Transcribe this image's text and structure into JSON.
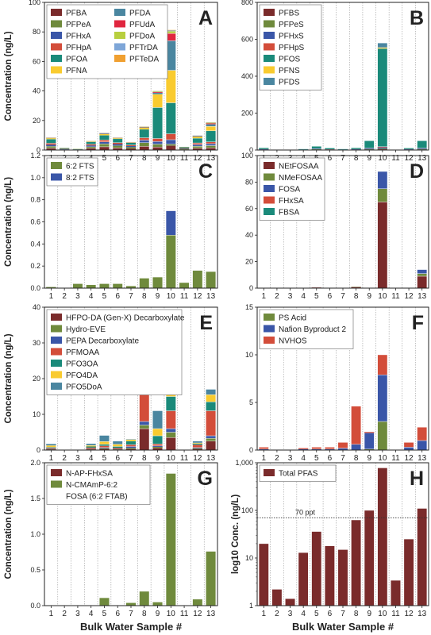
{
  "colors": {
    "PFBA": "#7a2b2b",
    "PFPeA": "#6f8a3c",
    "PFHxA": "#3a56a8",
    "PFHpA": "#d34d3a",
    "PFOA": "#1a8a7a",
    "PFNA": "#f9cb2f",
    "PFDA": "#4a86a0",
    "PFUdA": "#e0263f",
    "PFDoA": "#b8cf3f",
    "PFTrDA": "#7ea6d8",
    "PFTeDA": "#f0a031",
    "PFBS": "#7a2b2b",
    "PFPeS": "#6f8a3c",
    "PFHxS": "#3a56a8",
    "PFHpS": "#d34d3a",
    "PFOS": "#1a8a7a",
    "PFNS": "#f9cb2f",
    "PFDS": "#4a86a0",
    "6:2 FTS": "#6f8a3c",
    "8:2 FTS": "#3a56a8",
    "NEtFOSAA": "#7a2b2b",
    "NMeFOSAA": "#6f8a3c",
    "FOSA": "#3a56a8",
    "FHxSA": "#d34d3a",
    "FBSA": "#1a8a7a",
    "HFPO-DA (Gen-X) Decarboxylate": "#7a2b2b",
    "Hydro-EVE": "#6f8a3c",
    "PEPA Decarboxylate": "#3a56a8",
    "PFMOAA": "#d34d3a",
    "PFO3OA": "#1a8a7a",
    "PFO4DA": "#f9cb2f",
    "PFO5DoA": "#4a86a0",
    "PS Acid": "#6f8a3c",
    "Nafion Byproduct 2": "#3a56a8",
    "NVHOS": "#d34d3a",
    "N-AP-FHxSA": "#7a2b2b",
    "N-CMAmP-6:2 FOSA (6:2 FTAB)": "#6f8a3c",
    "Total PFAS": "#7a2b2b"
  },
  "chart_data": [
    {
      "panel": "A",
      "type": "bar",
      "stacked": true,
      "categories": [
        "1",
        "2",
        "3",
        "4",
        "5",
        "6",
        "7",
        "8",
        "9",
        "10",
        "11",
        "12",
        "13"
      ],
      "ylabel": "Concentration (ng/L)",
      "ylim": [
        0,
        100
      ],
      "yticks": [
        0,
        20,
        40,
        60,
        80,
        100
      ],
      "legend_placement": "top-left",
      "legend_columns": 2,
      "series": [
        {
          "name": "PFBA",
          "values": [
            1.3,
            0.2,
            0.1,
            1.2,
            2.2,
            1.4,
            1.0,
            2.5,
            2.0,
            3.0,
            0.4,
            1.3,
            1.5
          ]
        },
        {
          "name": "PFPeA",
          "values": [
            1.3,
            0.2,
            0.1,
            1.1,
            2.0,
            1.6,
            1.0,
            2.5,
            2.0,
            1.0,
            0.4,
            1.3,
            1.5
          ]
        },
        {
          "name": "PFHxA",
          "values": [
            1.0,
            0.2,
            0.1,
            0.8,
            1.3,
            1.0,
            0.7,
            1.7,
            1.8,
            3.0,
            0.3,
            1.1,
            1.3
          ]
        },
        {
          "name": "PFHpA",
          "values": [
            1.0,
            0.2,
            0.1,
            0.8,
            1.3,
            1.0,
            0.7,
            1.6,
            2.0,
            4.0,
            0.3,
            1.1,
            1.2
          ]
        },
        {
          "name": "PFOA",
          "values": [
            2.8,
            0.5,
            0.3,
            1.6,
            3.2,
            2.6,
            1.6,
            5.7,
            21.0,
            21.0,
            0.6,
            3.2,
            7.5
          ]
        },
        {
          "name": "PFNA",
          "values": [
            0.6,
            0.1,
            0.1,
            0.3,
            0.8,
            0.4,
            0.2,
            1.0,
            9.0,
            22.0,
            0.1,
            1.0,
            3.0
          ]
        },
        {
          "name": "PFDA",
          "values": [
            0.2,
            0.0,
            0.0,
            0.1,
            0.4,
            0.2,
            0.1,
            0.3,
            1.0,
            20.0,
            0.0,
            0.4,
            1.5
          ]
        },
        {
          "name": "PFUdA",
          "values": [
            0.1,
            0.0,
            0.0,
            0.1,
            0.2,
            0.1,
            0.1,
            0.2,
            0.5,
            5.0,
            0.0,
            0.2,
            0.6
          ]
        },
        {
          "name": "PFDoA",
          "values": [
            0.1,
            0.0,
            0.0,
            0.1,
            0.1,
            0.1,
            0.0,
            0.2,
            0.4,
            1.5,
            0.0,
            0.1,
            0.4
          ]
        },
        {
          "name": "PFTrDA",
          "values": [
            0.0,
            0.0,
            0.0,
            0.0,
            0.1,
            0.0,
            0.0,
            0.1,
            0.2,
            0.5,
            0.0,
            0.1,
            0.2
          ]
        },
        {
          "name": "PFTeDA",
          "values": [
            0.0,
            0.0,
            0.0,
            0.0,
            0.0,
            0.0,
            0.0,
            0.1,
            0.1,
            0.3,
            0.0,
            0.0,
            0.1
          ]
        }
      ]
    },
    {
      "panel": "B",
      "type": "bar",
      "stacked": true,
      "categories": [
        "1",
        "2",
        "3",
        "4",
        "5",
        "6",
        "7",
        "8",
        "9",
        "10",
        "11",
        "12",
        "13"
      ],
      "ylabel": "",
      "ylim": [
        0,
        800
      ],
      "yticks": [
        0,
        200,
        400,
        600,
        800
      ],
      "legend_placement": "top-left",
      "legend_columns": 1,
      "series": [
        {
          "name": "PFBS",
          "values": [
            1,
            0,
            0,
            1,
            2,
            1,
            1,
            1,
            2,
            4,
            0,
            1,
            2
          ]
        },
        {
          "name": "PFPeS",
          "values": [
            1,
            0,
            0,
            1,
            2,
            1,
            1,
            1,
            2,
            4,
            0,
            1,
            2
          ]
        },
        {
          "name": "PFHxS",
          "values": [
            2,
            0,
            0,
            1,
            3,
            1,
            1,
            2,
            4,
            6,
            0,
            2,
            4
          ]
        },
        {
          "name": "PFHpS",
          "values": [
            1,
            0,
            0,
            0,
            1,
            1,
            0,
            1,
            2,
            4,
            0,
            1,
            2
          ]
        },
        {
          "name": "PFOS",
          "values": [
            6,
            1,
            1,
            2,
            12,
            6,
            2,
            6,
            40,
            532,
            1,
            5,
            40
          ]
        },
        {
          "name": "PFNS",
          "values": [
            0,
            0,
            0,
            0,
            0,
            0,
            0,
            0,
            0,
            5,
            0,
            0,
            0
          ]
        },
        {
          "name": "PFDS",
          "values": [
            0,
            0,
            0,
            0,
            0,
            0,
            0,
            0,
            0,
            25,
            0,
            0,
            0
          ]
        }
      ]
    },
    {
      "panel": "C",
      "type": "bar",
      "stacked": true,
      "categories": [
        "1",
        "2",
        "3",
        "4",
        "5",
        "6",
        "7",
        "8",
        "9",
        "10",
        "11",
        "12",
        "13"
      ],
      "ylabel": "Concentration (ng/L)",
      "ylim": [
        0,
        1.2
      ],
      "yticks": [
        0.0,
        0.2,
        0.4,
        0.6,
        0.8,
        1.0,
        1.2
      ],
      "legend_placement": "top-left",
      "legend_columns": 1,
      "series": [
        {
          "name": "6:2 FTS",
          "values": [
            0.01,
            0.0,
            0.04,
            0.03,
            0.04,
            0.04,
            0.02,
            0.09,
            0.1,
            0.48,
            0.05,
            0.16,
            0.15
          ]
        },
        {
          "name": "8:2 FTS",
          "values": [
            0.0,
            0.0,
            0.0,
            0.0,
            0.0,
            0.0,
            0.0,
            0.0,
            0.0,
            0.22,
            0.0,
            0.0,
            0.0
          ]
        }
      ]
    },
    {
      "panel": "D",
      "type": "bar",
      "stacked": true,
      "categories": [
        "1",
        "2",
        "3",
        "4",
        "5",
        "6",
        "7",
        "8",
        "9",
        "10",
        "11",
        "12",
        "13"
      ],
      "ylabel": "",
      "ylim": [
        0,
        100
      ],
      "yticks": [
        0,
        20,
        40,
        60,
        80,
        100
      ],
      "legend_placement": "top-left",
      "legend_columns": 1,
      "series": [
        {
          "name": "NEtFOSAA",
          "values": [
            0,
            0,
            0,
            0,
            0.5,
            0,
            0,
            0.8,
            0,
            65,
            0,
            0,
            9
          ]
        },
        {
          "name": "NMeFOSAA",
          "values": [
            0,
            0,
            0,
            0,
            0,
            0,
            0,
            0.2,
            0,
            10,
            0,
            0,
            2
          ]
        },
        {
          "name": "FOSA",
          "values": [
            0,
            0,
            0,
            0,
            0,
            0,
            0,
            0,
            0,
            13,
            0,
            0,
            3
          ]
        },
        {
          "name": "FHxSA",
          "values": [
            0,
            0,
            0,
            0,
            0,
            0,
            0,
            0,
            0,
            0,
            0,
            0,
            0
          ]
        },
        {
          "name": "FBSA",
          "values": [
            0,
            0,
            0,
            0,
            0,
            0,
            0,
            0,
            0,
            0,
            0,
            0,
            0
          ]
        }
      ]
    },
    {
      "panel": "E",
      "type": "bar",
      "stacked": true,
      "categories": [
        "1",
        "2",
        "3",
        "4",
        "5",
        "6",
        "7",
        "8",
        "9",
        "10",
        "11",
        "12",
        "13"
      ],
      "ylabel": "Concentration (ng/L)",
      "ylim": [
        0,
        40
      ],
      "yticks": [
        0,
        10,
        20,
        30,
        40
      ],
      "legend_placement": "top-left",
      "legend_columns": 1,
      "series": [
        {
          "name": "HFPO-DA (Gen-X) Decarboxylate",
          "values": [
            0.2,
            0,
            0,
            0.2,
            0.3,
            0.1,
            0.3,
            6.0,
            0.6,
            3.5,
            0,
            0.3,
            2.5
          ]
        },
        {
          "name": "Hydro-EVE",
          "values": [
            0.1,
            0,
            0,
            0.1,
            0.2,
            0.1,
            0.3,
            1.0,
            0.3,
            1.5,
            0,
            0.2,
            0.8
          ]
        },
        {
          "name": "PEPA Decarboxylate",
          "values": [
            0.1,
            0,
            0,
            0.1,
            0.2,
            0.1,
            0.4,
            1.0,
            0.3,
            1.0,
            0,
            0.2,
            0.7
          ]
        },
        {
          "name": "PFMOAA",
          "values": [
            0.2,
            0,
            0,
            0.3,
            0.5,
            0.3,
            0.5,
            12.0,
            0.5,
            5.0,
            0,
            0.8,
            7.0
          ]
        },
        {
          "name": "PFO3OA",
          "values": [
            0.2,
            0,
            0,
            0.3,
            0.4,
            0.4,
            1.0,
            4.0,
            2.3,
            4.0,
            0,
            0.3,
            2.5
          ]
        },
        {
          "name": "PFO4DA",
          "values": [
            0.5,
            0,
            0,
            0.3,
            0.8,
            0.6,
            0.4,
            2.0,
            2.0,
            5.0,
            0,
            0.2,
            2.0
          ]
        },
        {
          "name": "PFO5DoA",
          "values": [
            0.4,
            0,
            0,
            0.5,
            1.7,
            0.9,
            0.1,
            0,
            5.0,
            8.5,
            0,
            0.5,
            1.5
          ]
        }
      ]
    },
    {
      "panel": "F",
      "type": "bar",
      "stacked": true,
      "categories": [
        "1",
        "2",
        "3",
        "4",
        "5",
        "6",
        "7",
        "8",
        "9",
        "10",
        "11",
        "12",
        "13"
      ],
      "ylabel": "",
      "ylim": [
        0,
        15
      ],
      "yticks": [
        0,
        5,
        10,
        15
      ],
      "legend_placement": "top-left",
      "legend_columns": 1,
      "series": [
        {
          "name": "PS Acid",
          "values": [
            0,
            0,
            0,
            0,
            0,
            0,
            0,
            0,
            0.1,
            3.0,
            0,
            0,
            0
          ]
        },
        {
          "name": "Nafion Byproduct 2",
          "values": [
            0.1,
            0,
            0,
            0.1,
            0.1,
            0.1,
            0.2,
            0.6,
            1.7,
            4.9,
            0,
            0.3,
            1.0
          ]
        },
        {
          "name": "NVHOS",
          "values": [
            0.2,
            0,
            0,
            0.1,
            0.2,
            0.2,
            0.6,
            4.0,
            0.1,
            2.1,
            0,
            0.5,
            1.4
          ]
        }
      ]
    },
    {
      "panel": "G",
      "type": "bar",
      "stacked": true,
      "categories": [
        "1",
        "2",
        "3",
        "4",
        "5",
        "6",
        "7",
        "8",
        "9",
        "10",
        "11",
        "12",
        "13"
      ],
      "ylabel": "Concentration (ng/L)",
      "xlabel": "Bulk Water Sample #",
      "ylim": [
        0,
        2.0
      ],
      "yticks": [
        0.0,
        0.5,
        1.0,
        1.5,
        2.0
      ],
      "legend_placement": "top-left",
      "legend_columns": 1,
      "series": [
        {
          "name": "N-AP-FHxSA",
          "values": [
            0,
            0,
            0,
            0,
            0,
            0,
            0,
            0,
            0,
            0,
            0,
            0,
            0
          ]
        },
        {
          "name": "N-CMAmP-6:2 FOSA (6:2 FTAB)",
          "values": [
            0,
            0,
            0,
            0,
            0.11,
            0,
            0.04,
            0.2,
            0.05,
            1.85,
            0,
            0.09,
            0.76
          ]
        }
      ]
    },
    {
      "panel": "H",
      "type": "bar",
      "stacked": false,
      "yscale": "log",
      "categories": [
        "1",
        "2",
        "3",
        "4",
        "5",
        "6",
        "7",
        "8",
        "9",
        "10",
        "11",
        "12",
        "13"
      ],
      "ylabel": "log10 Conc. (ng/L)",
      "xlabel": "Bulk Water Sample #",
      "ylim": [
        1,
        1000
      ],
      "yticks": [
        1,
        10,
        100,
        1000
      ],
      "ytick_labels": [
        "1",
        "10",
        "100",
        "1,000"
      ],
      "legend_placement": "top-left",
      "legend_columns": 1,
      "reference_line": {
        "value": 70,
        "label": "70 ppt"
      },
      "series": [
        {
          "name": "Total PFAS",
          "values": [
            20,
            2.2,
            1.4,
            13,
            36,
            18,
            15,
            63,
            100,
            780,
            3.4,
            25,
            110
          ]
        }
      ]
    }
  ]
}
